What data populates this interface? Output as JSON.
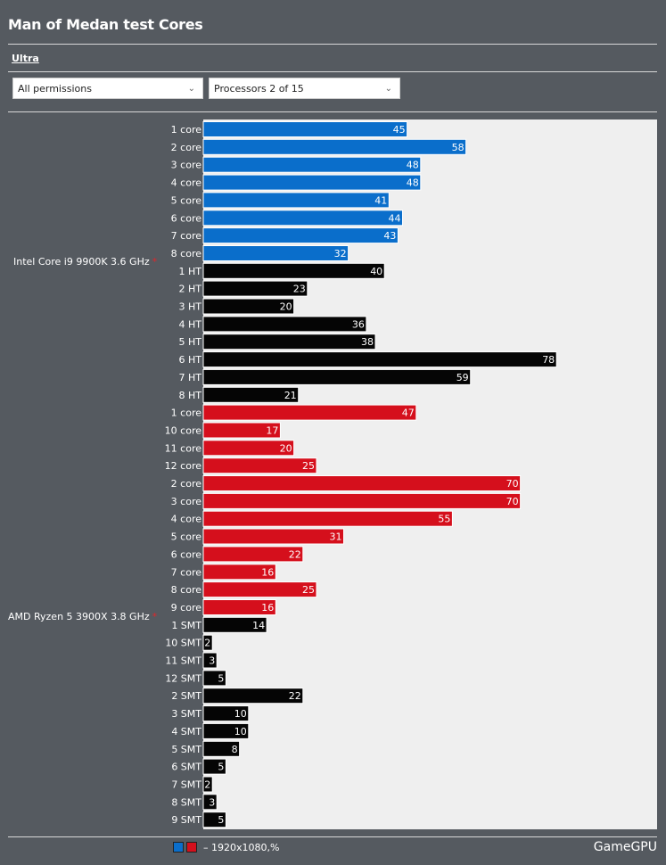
{
  "page_title": "Man of Medan test Cores",
  "tabs": [
    "Ultra"
  ],
  "filters": {
    "permissions": "All permissions",
    "processors": "Processors 2 of 15"
  },
  "legend": {
    "text": "– 1920x1080,%"
  },
  "brand": "GameGPU",
  "colors": {
    "blue": "#0a6ecb",
    "red": "#d50f1c",
    "black": "#050505"
  },
  "chart_data": {
    "type": "bar",
    "orientation": "horizontal",
    "xlim": [
      0,
      90
    ],
    "groups": [
      {
        "name": "Intel Core i9 9900K 3.6 GHz",
        "bars": [
          {
            "label": "1 core",
            "value": 45,
            "color": "blue"
          },
          {
            "label": "2 core",
            "value": 58,
            "color": "blue"
          },
          {
            "label": "3 core",
            "value": 48,
            "color": "blue"
          },
          {
            "label": "4 core",
            "value": 48,
            "color": "blue"
          },
          {
            "label": "5 core",
            "value": 41,
            "color": "blue"
          },
          {
            "label": "6 core",
            "value": 44,
            "color": "blue"
          },
          {
            "label": "7 core",
            "value": 43,
            "color": "blue"
          },
          {
            "label": "8 core",
            "value": 32,
            "color": "blue"
          },
          {
            "label": "1 HT",
            "value": 40,
            "color": "black"
          },
          {
            "label": "2 HT",
            "value": 23,
            "color": "black"
          },
          {
            "label": "3 HT",
            "value": 20,
            "color": "black"
          },
          {
            "label": "4 HT",
            "value": 36,
            "color": "black"
          },
          {
            "label": "5 HT",
            "value": 38,
            "color": "black"
          },
          {
            "label": "6 HT",
            "value": 78,
            "color": "black"
          },
          {
            "label": "7 HT",
            "value": 59,
            "color": "black"
          },
          {
            "label": "8 HT",
            "value": 21,
            "color": "black"
          }
        ]
      },
      {
        "name": "AMD Ryzen 5 3900X 3.8 GHz",
        "bars": [
          {
            "label": "1 core",
            "value": 47,
            "color": "red"
          },
          {
            "label": "10 core",
            "value": 17,
            "color": "red"
          },
          {
            "label": "11 core",
            "value": 20,
            "color": "red"
          },
          {
            "label": "12 core",
            "value": 25,
            "color": "red"
          },
          {
            "label": "2 core",
            "value": 70,
            "color": "red"
          },
          {
            "label": "3 core",
            "value": 70,
            "color": "red"
          },
          {
            "label": "4 core",
            "value": 55,
            "color": "red"
          },
          {
            "label": "5 core",
            "value": 31,
            "color": "red"
          },
          {
            "label": "6 core",
            "value": 22,
            "color": "red"
          },
          {
            "label": "7 core",
            "value": 16,
            "color": "red"
          },
          {
            "label": "8 core",
            "value": 25,
            "color": "red"
          },
          {
            "label": "9 core",
            "value": 16,
            "color": "red"
          },
          {
            "label": "1 SMT",
            "value": 14,
            "color": "black"
          },
          {
            "label": "10 SMT",
            "value": 2,
            "color": "black"
          },
          {
            "label": "11 SMT",
            "value": 3,
            "color": "black"
          },
          {
            "label": "12 SMT",
            "value": 5,
            "color": "black"
          },
          {
            "label": "2 SMT",
            "value": 22,
            "color": "black"
          },
          {
            "label": "3 SMT",
            "value": 10,
            "color": "black"
          },
          {
            "label": "4 SMT",
            "value": 10,
            "color": "black"
          },
          {
            "label": "5 SMT",
            "value": 8,
            "color": "black"
          },
          {
            "label": "6 SMT",
            "value": 5,
            "color": "black"
          },
          {
            "label": "7 SMT",
            "value": 2,
            "color": "black"
          },
          {
            "label": "8 SMT",
            "value": 3,
            "color": "black"
          },
          {
            "label": "9 SMT",
            "value": 5,
            "color": "black"
          }
        ]
      }
    ]
  }
}
